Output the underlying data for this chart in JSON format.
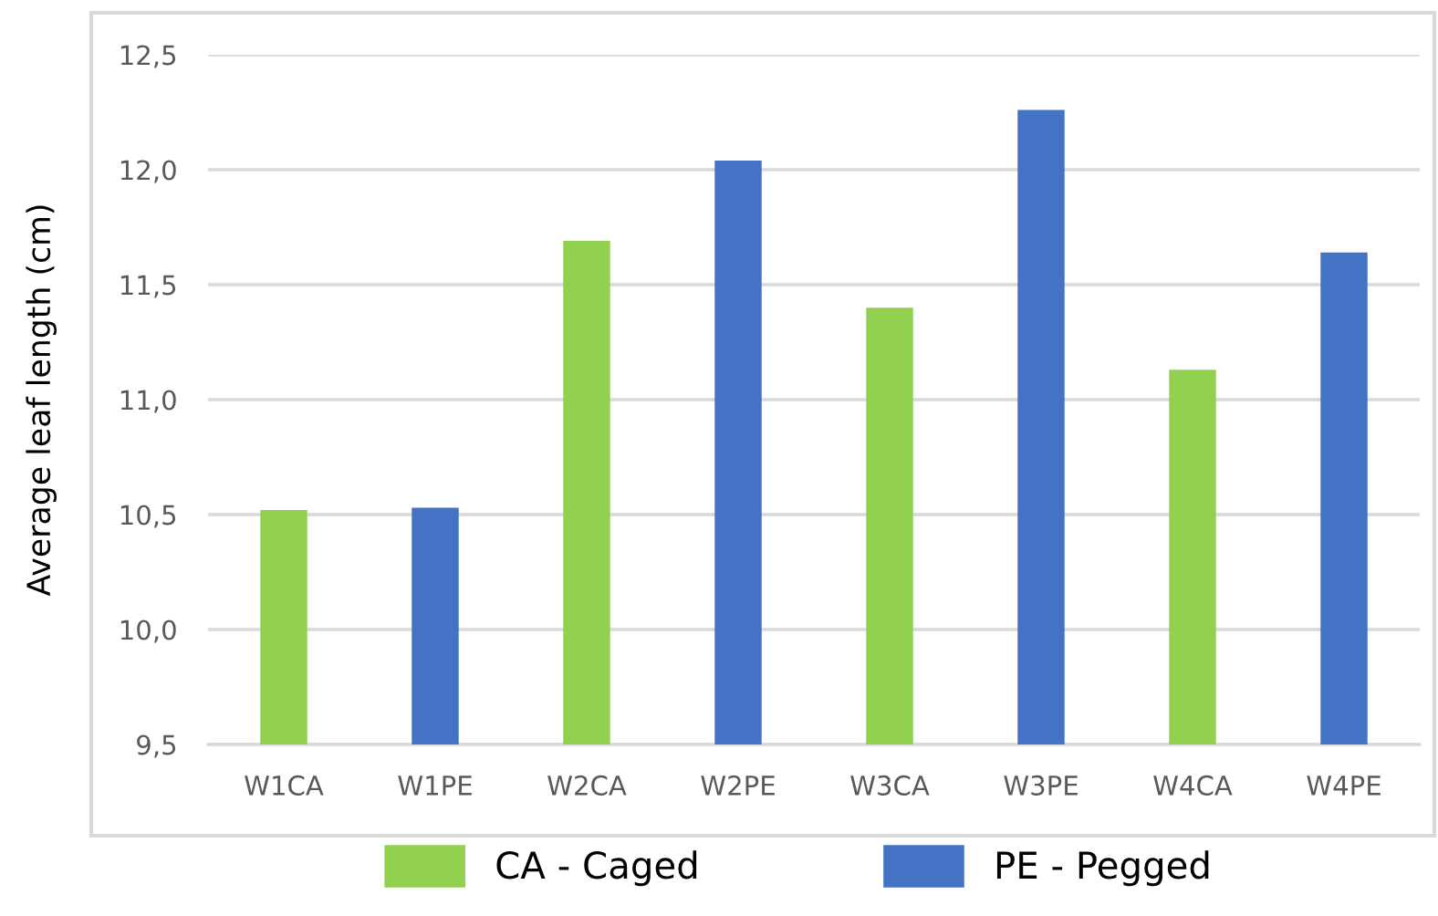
{
  "chart_data": {
    "type": "bar",
    "ylabel": "Average leaf length (cm)",
    "categories": [
      "W1CA",
      "W1PE",
      "W2CA",
      "W2PE",
      "W3CA",
      "W3PE",
      "W4CA",
      "W4PE"
    ],
    "series": [
      {
        "name": "CA - Caged",
        "color": "#92d050",
        "values": [
          10.52,
          null,
          11.69,
          null,
          11.4,
          null,
          11.13,
          null
        ]
      },
      {
        "name": "PE - Pegged",
        "color": "#4472c4",
        "values": [
          null,
          10.53,
          null,
          12.04,
          null,
          12.26,
          null,
          11.64
        ]
      }
    ],
    "ylim": [
      9.5,
      12.5
    ],
    "yticks": [
      {
        "value": 9.5,
        "label": "9,5"
      },
      {
        "value": 10.0,
        "label": "10,0"
      },
      {
        "value": 10.5,
        "label": "10,5"
      },
      {
        "value": 11.0,
        "label": "11,0"
      },
      {
        "value": 11.5,
        "label": "11,5"
      },
      {
        "value": 12.0,
        "label": "12,0"
      },
      {
        "value": 12.5,
        "label": "12,5"
      }
    ],
    "grid": "y",
    "legend": "bottom"
  }
}
